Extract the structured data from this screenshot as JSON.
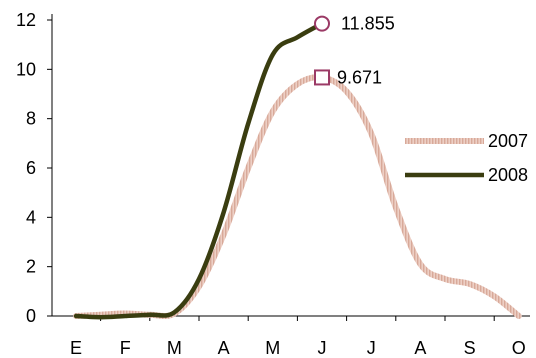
{
  "chart_data": {
    "type": "line",
    "title": "",
    "xlabel": "",
    "ylabel": "",
    "categories": [
      "E",
      "F",
      "M",
      "A",
      "M",
      "J",
      "J",
      "A",
      "S",
      "O"
    ],
    "ylim": [
      0,
      12
    ],
    "yticks": [
      0,
      2,
      4,
      6,
      8,
      10,
      12
    ],
    "grid": false,
    "legend_position": "right",
    "series": [
      {
        "name": "2007",
        "color": "#e8c2b6",
        "style": "textured-thick",
        "x": [
          0,
          0.5,
          1,
          1.5,
          2,
          2.5,
          3,
          3.5,
          4,
          4.5,
          5,
          5.5,
          6,
          6.5,
          7,
          7.5,
          8,
          8.5,
          9
        ],
        "values": [
          0,
          0.05,
          0.1,
          0.05,
          0.1,
          1.2,
          3.3,
          6.0,
          8.3,
          9.4,
          9.671,
          9.1,
          7.4,
          4.4,
          2.1,
          1.5,
          1.3,
          0.8,
          0
        ]
      },
      {
        "name": "2008",
        "color": "#3a3d10",
        "style": "solid-thick",
        "x": [
          0,
          0.5,
          1,
          1.5,
          2,
          2.5,
          3,
          3.5,
          4,
          4.5,
          5
        ],
        "values": [
          0,
          -0.05,
          0,
          0.05,
          0.15,
          1.5,
          4.2,
          7.8,
          10.6,
          11.3,
          11.855
        ]
      }
    ],
    "annotations": [
      {
        "series": "2008",
        "x": 5,
        "y": 11.855,
        "label": "11.855",
        "marker": "circle",
        "marker_color": "#9b3a66"
      },
      {
        "series": "2007",
        "x": 5,
        "y": 9.671,
        "label": "9.671",
        "marker": "square",
        "marker_color": "#9b3a66"
      }
    ]
  }
}
